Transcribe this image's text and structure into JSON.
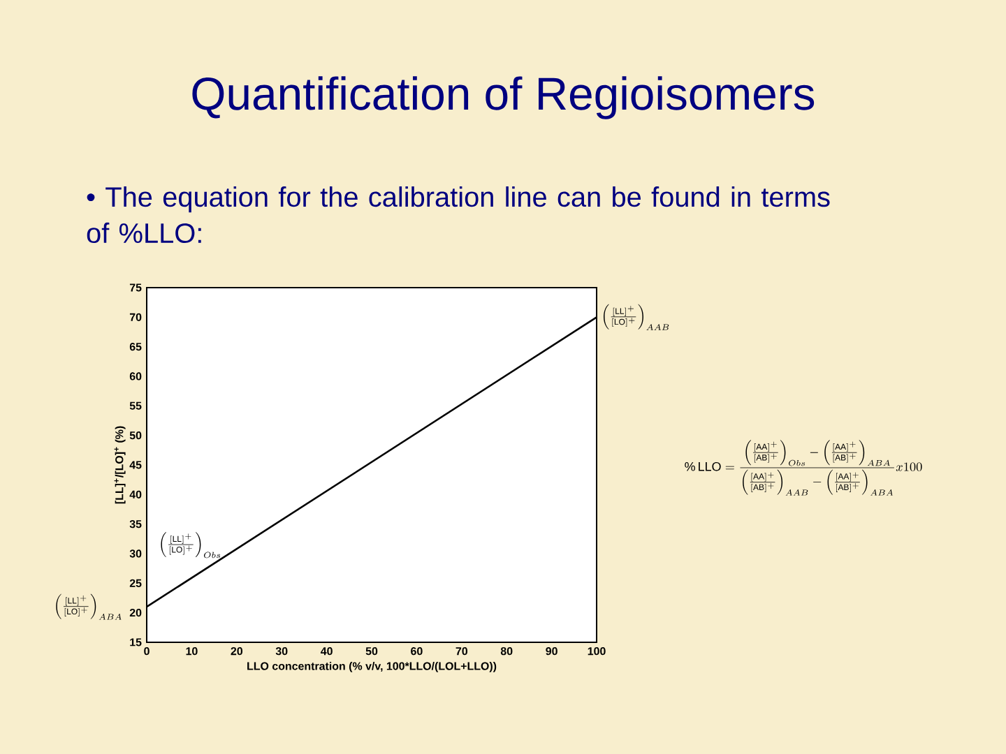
{
  "chart_data": {
    "type": "line",
    "title": "Quantification of Regioisomers",
    "subtitle": "• The equation for the calibration line can be found in terms of %LLO:",
    "xlabel": "LLO concentration (% v/v, 100*LLO/(LOL+LLO))",
    "ylabel": "[LL]$^{+}$/[LO]$^{+}$ (%)",
    "x": [
      0,
      100
    ],
    "series": [
      {
        "color": "#000000",
        "values": [
          21,
          70
        ]
      }
    ],
    "xlim": [
      0,
      100
    ],
    "xticks": [
      0,
      10,
      20,
      30,
      40,
      50,
      60,
      70,
      80,
      90,
      100
    ],
    "ylim": [
      15,
      75
    ],
    "yticks": [
      15,
      20,
      25,
      30,
      35,
      40,
      45,
      50,
      55,
      60,
      65,
      70,
      75
    ],
    "marker": "none",
    "line_style": "solid",
    "annotations": [
      {
        "text": "\\left(\\frac{[\\mathrm{LL}]^{+}}{[\\mathrm{LO}]^{+}}\\right)_{AAB}",
        "x": 100,
        "y": 70
      },
      {
        "text": "\\left(\\frac{[\\mathrm{LL}]^{+}}{[\\mathrm{LO}]^{+}}\\right)_{Obs}",
        "x": 17,
        "y": 29
      },
      {
        "text": "\\left(\\frac{[\\mathrm{LL}]^{+}}{[\\mathrm{LO}]^{+}}\\right)_{ABA}",
        "x": 0,
        "y": 21
      },
      "\\%\\,\\mathrm{LLO}=\\frac{\\left(\\frac{[\\mathrm{AA}]^{+}}{[\\mathrm{AB}]^{+}}\\right)_{Obs}-\\left(\\frac{[\\mathrm{AA}]^{+}}{[\\mathrm{AB}]^{+}}\\right)_{ABA}}{\\left(\\frac{[\\mathrm{AA}]^{+}}{[\\mathrm{AB}]^{+}}\\right)_{AAB}-\\left(\\frac{[\\mathrm{AA}]^{+}}{[\\mathrm{AB}]^{+}}\\right)_{ABA}}x100"
    ]
  }
}
